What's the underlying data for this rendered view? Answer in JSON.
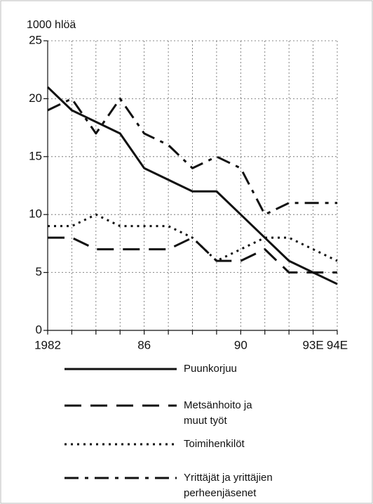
{
  "chart_data": {
    "type": "line",
    "ylabel": "1000 hlöä",
    "categories": [
      "1982",
      null,
      null,
      null,
      "86",
      null,
      null,
      null,
      "90",
      null,
      null,
      "93E",
      "94E"
    ],
    "series": [
      {
        "name": "Puunkorjuu",
        "color": "#111111",
        "linestyle": "solid",
        "values": [
          21,
          19,
          18,
          17,
          14,
          13,
          12,
          12,
          10,
          8,
          6,
          5,
          4
        ]
      },
      {
        "name": "Metsänhoito ja muut työt",
        "color": "#111111",
        "linestyle": "dashed",
        "values": [
          8,
          8,
          7,
          7,
          7,
          7,
          8,
          6,
          6,
          7,
          5,
          5,
          5
        ]
      },
      {
        "name": "Toimihenkilöt",
        "color": "#111111",
        "linestyle": "dotted",
        "values": [
          9,
          9,
          10,
          9,
          9,
          9,
          8,
          6,
          7,
          8,
          8,
          7,
          6
        ]
      },
      {
        "name": "Yrittäjät ja yrittäjien perheenjäsenet",
        "color": "#111111",
        "linestyle": "dashdot",
        "values": [
          19,
          20,
          17,
          20,
          17,
          16,
          14,
          15,
          14,
          10,
          11,
          11,
          11
        ]
      }
    ],
    "ylim": [
      0,
      25
    ],
    "yticks": [
      0,
      5,
      10,
      15,
      20,
      25
    ],
    "grid": true
  }
}
